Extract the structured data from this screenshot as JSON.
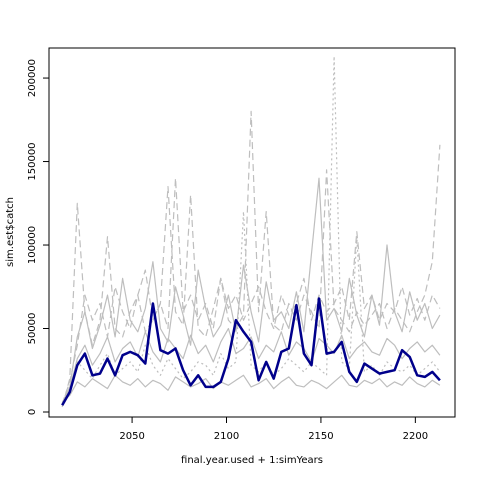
{
  "chart_data": {
    "type": "line",
    "xlabel": "final.year.used + 1:simYears",
    "ylabel": "sim.est$catch",
    "xlim": [
      2006,
      2221
    ],
    "xticks": [
      2050,
      2100,
      2150,
      2200
    ],
    "ylim": [
      -3000,
      218000
    ],
    "yticks": [
      0,
      50000,
      100000,
      150000,
      200000
    ],
    "x": [
      2013,
      2017,
      2021,
      2025,
      2029,
      2033,
      2037,
      2041,
      2045,
      2049,
      2053,
      2057,
      2061,
      2065,
      2069,
      2073,
      2077,
      2081,
      2085,
      2089,
      2093,
      2097,
      2101,
      2105,
      2109,
      2113,
      2117,
      2121,
      2125,
      2129,
      2133,
      2137,
      2141,
      2145,
      2149,
      2153,
      2157,
      2161,
      2165,
      2169,
      2173,
      2177,
      2181,
      2185,
      2189,
      2193,
      2197,
      2201,
      2205,
      2209,
      2213
    ],
    "series": [
      {
        "color": "#bebebe",
        "dash": "solid",
        "values": [
          5000,
          15000,
          45000,
          60000,
          38000,
          52000,
          70000,
          45000,
          80000,
          55000,
          48000,
          62000,
          90000,
          50000,
          42000,
          75000,
          58000,
          40000,
          85000,
          62000,
          45000,
          52000,
          70000,
          48000,
          88000,
          60000,
          42000,
          78000,
          55000,
          60000,
          50000,
          72000,
          48000,
          95000,
          140000,
          55000,
          62000,
          48000,
          80000,
          58000,
          45000,
          70000,
          52000,
          100000,
          60000,
          48000,
          72000,
          55000,
          65000,
          50000,
          58000
        ]
      },
      {
        "color": "#bebebe",
        "dash": "dashed",
        "values": [
          3000,
          20000,
          125000,
          60000,
          40000,
          55000,
          105000,
          50000,
          45000,
          60000,
          70000,
          48000,
          55000,
          65000,
          135000,
          60000,
          52000,
          130000,
          50000,
          45000,
          62000,
          80000,
          55000,
          50000,
          58000,
          180000,
          60000,
          120000,
          52000,
          48000,
          65000,
          55000,
          70000,
          60000,
          50000,
          145000,
          62000,
          55000,
          48000,
          60000,
          52000,
          58000,
          65000,
          50000,
          62000,
          55000,
          48000,
          60000,
          70000,
          90000,
          160000
        ]
      },
      {
        "color": "#bebebe",
        "dash": "dotted",
        "values": [
          4000,
          12000,
          30000,
          25000,
          20000,
          28000,
          35000,
          22000,
          26000,
          30000,
          24000,
          40000,
          28000,
          22000,
          32000,
          26000,
          20000,
          24000,
          30000,
          28000,
          22000,
          35000,
          26000,
          30000,
          120000,
          28000,
          24000,
          30000,
          22000,
          26000,
          32000,
          28000,
          24000,
          30000,
          26000,
          22000,
          213000,
          30000,
          26000,
          105000,
          24000,
          28000,
          22000,
          30000,
          26000,
          24000,
          28000,
          22000,
          26000,
          30000,
          24000
        ]
      },
      {
        "color": "#bebebe",
        "dash": "solid",
        "values": [
          6000,
          10000,
          18000,
          15000,
          20000,
          17000,
          14000,
          22000,
          18000,
          16000,
          20000,
          15000,
          19000,
          17000,
          13000,
          21000,
          18000,
          15000,
          17000,
          20000,
          14000,
          18000,
          16000,
          19000,
          22000,
          15000,
          17000,
          20000,
          14000,
          18000,
          21000,
          16000,
          15000,
          19000,
          17000,
          14000,
          18000,
          22000,
          16000,
          15000,
          19000,
          17000,
          20000,
          15000,
          18000,
          16000,
          21000,
          17000,
          15000,
          19000,
          16000
        ]
      },
      {
        "color": "#bebebe",
        "dash": "dashed",
        "values": [
          5000,
          18000,
          40000,
          70000,
          55000,
          65000,
          45000,
          75000,
          60000,
          50000,
          70000,
          85000,
          55000,
          65000,
          50000,
          140000,
          60000,
          70000,
          55000,
          65000,
          50000,
          80000,
          62000,
          70000,
          55000,
          65000,
          75000,
          60000,
          50000,
          70000,
          58000,
          65000,
          80000,
          55000,
          70000,
          60000,
          65000,
          75000,
          55000,
          108000,
          62000,
          70000,
          55000,
          65000,
          60000,
          75000,
          58000,
          68000,
          55000,
          70000,
          62000
        ]
      },
      {
        "color": "#bebebe",
        "dash": "solid",
        "values": [
          4000,
          14000,
          32000,
          40000,
          28000,
          35000,
          45000,
          30000,
          38000,
          42000,
          33000,
          48000,
          36000,
          30000,
          44000,
          38000,
          32000,
          46000,
          35000,
          40000,
          30000,
          42000,
          50000,
          35000,
          38000,
          45000,
          32000,
          40000,
          36000,
          48000,
          34000,
          42000,
          38000,
          30000,
          44000,
          40000,
          35000,
          46000,
          32000,
          38000,
          42000,
          36000,
          34000,
          44000,
          40000,
          32000,
          38000,
          42000,
          36000,
          40000,
          34000
        ]
      },
      {
        "color": "#00008b",
        "dash": "solid",
        "width": 2.5,
        "values": [
          4000,
          12000,
          28000,
          35000,
          22000,
          23000,
          32000,
          22000,
          34000,
          36000,
          34000,
          29000,
          65000,
          37000,
          35000,
          38000,
          25000,
          16000,
          22000,
          15000,
          15000,
          18000,
          32000,
          55000,
          48000,
          42000,
          19000,
          30000,
          20000,
          36000,
          38000,
          64000,
          35000,
          28000,
          68000,
          35000,
          36000,
          42000,
          24000,
          18000,
          29000,
          26000,
          23000,
          24000,
          25000,
          37000,
          33000,
          22000,
          21000,
          24000,
          19000
        ]
      }
    ]
  }
}
